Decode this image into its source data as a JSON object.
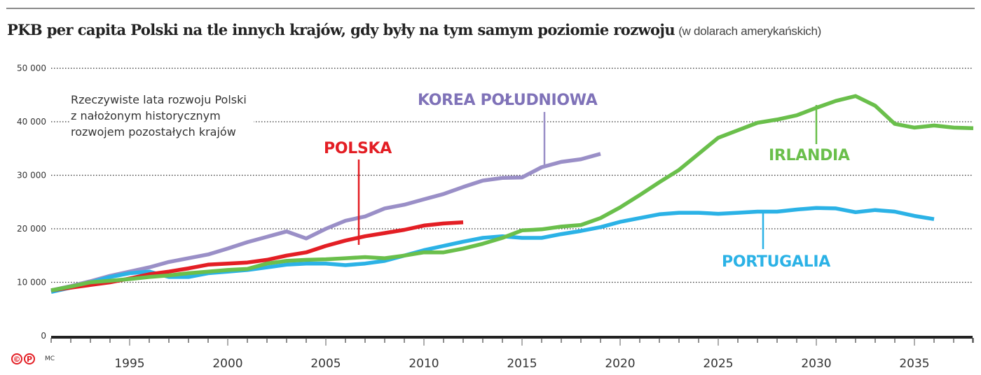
{
  "header": {
    "title": "PKB per capita Polski na tle innych krajów, gdy były na tym samym poziomie rozwoju",
    "unit": "(w dolarach amerykańskich)"
  },
  "note": {
    "line1": "Rzeczywiste lata rozwoju Polski",
    "line2": "z nałożonym historycznym",
    "line3": "rozwojem pozostałych krajów"
  },
  "labels": {
    "polska": "POLSKA",
    "korea": "KOREA POŁUDNIOWA",
    "irlandia": "IRLANDIA",
    "portugalia": "PORTUGALIA"
  },
  "credits": {
    "copyright_icon": "©",
    "p_icon": "P",
    "author": "MC"
  },
  "colors": {
    "polska": "#e31e24",
    "korea": "#9a8fc7",
    "irlandia": "#6abf4b",
    "portugalia": "#2bb2e6",
    "axis": "#222222",
    "grid": "#333333"
  },
  "chart_data": {
    "type": "line",
    "title": "PKB per capita Polski na tle innych krajów, gdy były na tym samym poziomie rozwoju",
    "subtitle": "(w dolarach amerykańskich)",
    "xlabel": "",
    "ylabel": "",
    "ylim": [
      0,
      50000
    ],
    "xlim": [
      1991,
      2038
    ],
    "yticks": [
      0,
      10000,
      20000,
      30000,
      40000,
      50000
    ],
    "ytick_labels": [
      "0",
      "10 000",
      "20 000",
      "30 000",
      "40 000",
      "50 000"
    ],
    "xticks": [
      1995,
      2000,
      2005,
      2010,
      2015,
      2020,
      2025,
      2030,
      2035
    ],
    "xtick_labels": [
      "1995",
      "2000",
      "2005",
      "2010",
      "2015",
      "2020",
      "2025",
      "2030",
      "2035"
    ],
    "grid": "horizontal dotted",
    "legend": "inline labels",
    "annotation": "Rzeczywiste lata rozwoju Polski z nałożonym historycznym rozwojem pozostałych krajów",
    "series": [
      {
        "name": "POLSKA",
        "start_year": 1991,
        "values": [
          8500,
          9000,
          9500,
          10000,
          10700,
          11500,
          12000,
          12600,
          13300,
          13500,
          13700,
          14200,
          15000,
          15600,
          16800,
          17800,
          18600,
          19200,
          19800,
          20600,
          21000,
          21200
        ]
      },
      {
        "name": "KOREA POŁUDNIOWA",
        "start_year": 1991,
        "values": [
          8500,
          9300,
          10200,
          11200,
          12000,
          12800,
          13800,
          14500,
          15200,
          16300,
          17500,
          18500,
          19500,
          18200,
          20000,
          21500,
          22300,
          23800,
          24500,
          25500,
          26500,
          27800,
          29000,
          29500,
          29600,
          31500,
          32500,
          33000,
          34000
        ]
      },
      {
        "name": "IRLANDIA",
        "start_year": 1991,
        "values": [
          8500,
          9200,
          10000,
          10300,
          10600,
          11000,
          11300,
          11700,
          12000,
          12300,
          12500,
          13500,
          14000,
          14200,
          14300,
          14500,
          14700,
          14500,
          15000,
          15600,
          15600,
          16300,
          17200,
          18300,
          19700,
          19900,
          20400,
          20700,
          22000,
          24000,
          26300,
          28700,
          31000,
          34000,
          37000,
          38400,
          39800,
          40400,
          41200,
          42600,
          43900,
          44800,
          43000,
          39600,
          38900,
          39300,
          38900,
          38800
        ]
      },
      {
        "name": "PORTUGALIA",
        "start_year": 1991,
        "values": [
          8200,
          9000,
          10000,
          11000,
          11700,
          12000,
          11000,
          11000,
          11700,
          12000,
          12300,
          12800,
          13300,
          13500,
          13500,
          13200,
          13500,
          14000,
          15000,
          16000,
          16800,
          17600,
          18300,
          18600,
          18300,
          18300,
          19000,
          19600,
          20300,
          21300,
          22000,
          22700,
          23000,
          23000,
          22800,
          23000,
          23200,
          23200,
          23600,
          23900,
          23800,
          23100,
          23500,
          23200,
          22400,
          21800
        ]
      }
    ]
  }
}
